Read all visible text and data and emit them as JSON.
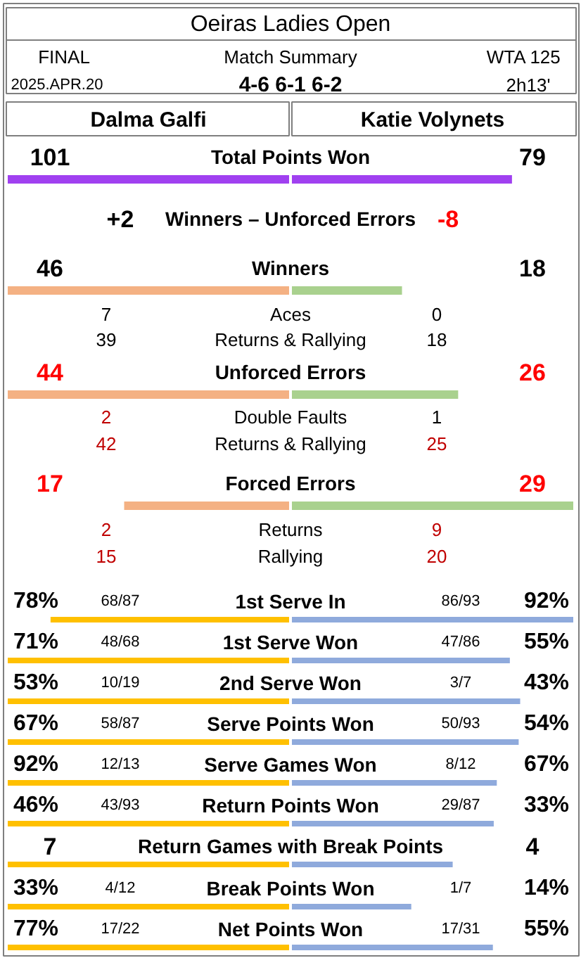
{
  "chart_data": {
    "type": "other",
    "title": "Oeiras Ladies Open",
    "annotations": [
      "FINAL",
      "Match Summary",
      "WTA 125",
      "2025.APR.20",
      "4-6 6-1 6-2",
      "2h13'",
      "Dalma Galfi",
      "Katie Volynets"
    ],
    "categories": [
      "Total Points Won",
      "Winners – Unforced Errors",
      "Winners",
      "Aces",
      "Returns & Rallying",
      "Unforced Errors",
      "Double Faults",
      "Returns & Rallying",
      "Forced Errors",
      "Returns",
      "Rallying",
      "1st Serve In",
      "1st Serve Won",
      "2nd Serve Won",
      "Serve Points Won",
      "Serve Games Won",
      "Return Points Won",
      "Return Games with Break Points",
      "Break Points Won",
      "Net Points Won"
    ],
    "series": [
      {
        "type": "bar",
        "values": [
          101,
          null,
          46,
          null,
          null,
          44,
          null,
          null,
          17,
          null,
          null,
          78,
          71,
          53,
          67,
          92,
          46,
          7,
          33,
          77
        ],
        "value_labels": [
          "101",
          null,
          "46",
          null,
          null,
          "44",
          null,
          null,
          "17",
          null,
          null,
          "78%",
          "71%",
          "53%",
          "67%",
          "92%",
          "46%",
          "7",
          "33%",
          "77%"
        ],
        "colors": [
          "#a040f0",
          null,
          "#f4b183",
          null,
          null,
          "#f4b183",
          null,
          null,
          "#f4b183",
          null,
          null,
          "#ffc000",
          "#ffc000",
          "#ffc000",
          "#ffc000",
          "#ffc000",
          "#ffc000",
          "#ffc000",
          "#ffc000",
          "#ffc000"
        ]
      },
      {
        "type": "bar",
        "values": [
          79,
          null,
          18,
          null,
          null,
          26,
          null,
          null,
          29,
          null,
          null,
          92,
          55,
          43,
          54,
          67,
          33,
          4,
          14,
          55
        ],
        "value_labels": [
          "79",
          null,
          "18",
          null,
          null,
          "26",
          null,
          null,
          "29",
          null,
          null,
          "92%",
          "55%",
          "43%",
          "54%",
          "67%",
          "33%",
          "4",
          "14%",
          "55%"
        ],
        "colors": [
          "#a040f0",
          null,
          "#a9d18e",
          null,
          null,
          "#a9d18e",
          null,
          null,
          "#a9d18e",
          null,
          null,
          "#8faadc",
          "#8faadc",
          "#8faadc",
          "#8faadc",
          "#8faadc",
          "#8faadc",
          "#8faadc",
          "#8faadc",
          "#8faadc"
        ]
      },
      {
        "type": "other",
        "values": [
          null,
          2,
          null,
          7,
          39,
          null,
          2,
          42,
          null,
          2,
          15,
          null,
          null,
          null,
          null,
          null,
          null,
          null,
          null,
          null
        ],
        "value_labels": [
          null,
          "+2",
          null,
          "7",
          "39",
          null,
          "2",
          "42",
          null,
          "2",
          "15",
          null,
          null,
          null,
          null,
          null,
          null,
          null,
          null,
          null
        ],
        "colors": [
          "#000000",
          "#000000",
          "#000000",
          "#000000",
          "#000000",
          "#ff0000",
          "#c00000",
          "#c00000",
          "#ff0000",
          "#c00000",
          "#c00000",
          "#000000",
          "#000000",
          "#000000",
          "#000000",
          "#000000",
          "#000000",
          "#000000",
          "#000000",
          "#000000"
        ]
      },
      {
        "type": "other",
        "values": [
          null,
          -8,
          null,
          0,
          18,
          null,
          1,
          25,
          null,
          9,
          20,
          null,
          null,
          null,
          null,
          null,
          null,
          null,
          null,
          null
        ],
        "value_labels": [
          null,
          "-8",
          null,
          "0",
          "18",
          null,
          "1",
          "25",
          null,
          "9",
          "20",
          null,
          null,
          null,
          null,
          null,
          null,
          null,
          null,
          null
        ],
        "colors": [
          "#000000",
          "#ff0000",
          "#000000",
          "#000000",
          "#000000",
          "#ff0000",
          "#000000",
          "#c00000",
          "#ff0000",
          "#c00000",
          "#c00000",
          "#000000",
          "#000000",
          "#000000",
          "#000000",
          "#000000",
          "#000000",
          "#000000",
          "#000000",
          "#000000"
        ]
      },
      {
        "type": "other",
        "color": "#000000",
        "values": [
          null,
          null,
          null,
          null,
          null,
          null,
          null,
          null,
          null,
          null,
          null,
          null,
          null,
          null,
          null,
          null,
          null,
          null,
          null,
          null
        ],
        "value_labels": [
          null,
          null,
          null,
          null,
          null,
          null,
          null,
          null,
          null,
          null,
          null,
          "68/87",
          "48/68",
          "10/19",
          "58/87",
          "12/13",
          "43/93",
          null,
          "4/12",
          "17/22"
        ]
      },
      {
        "type": "other",
        "color": "#000000",
        "values": [
          null,
          null,
          null,
          null,
          null,
          null,
          null,
          null,
          null,
          null,
          null,
          null,
          null,
          null,
          null,
          null,
          null,
          null,
          null,
          null
        ],
        "value_labels": [
          null,
          null,
          null,
          null,
          null,
          null,
          null,
          null,
          null,
          null,
          null,
          "86/93",
          "47/86",
          "3/7",
          "50/93",
          "8/12",
          "29/87",
          null,
          "1/7",
          "17/31"
        ]
      }
    ]
  }
}
